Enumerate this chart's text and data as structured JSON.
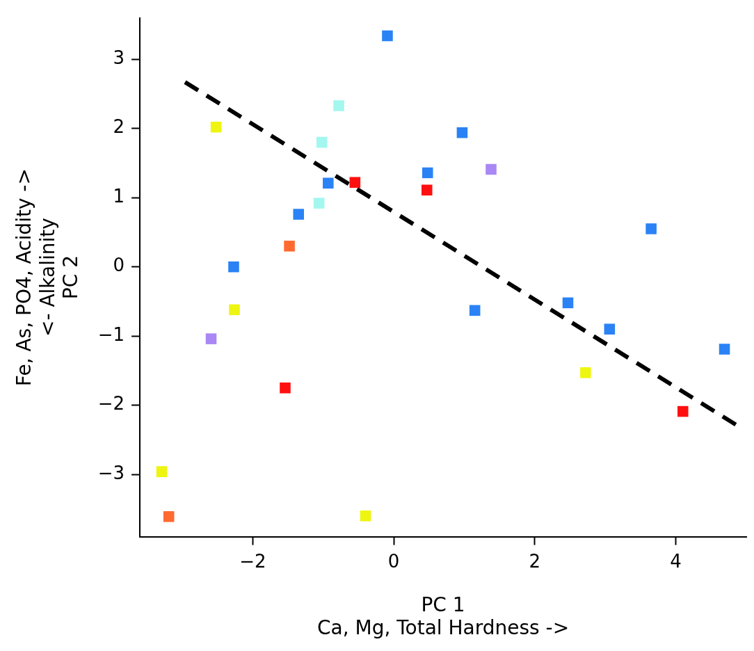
{
  "chart_data": {
    "type": "scatter",
    "xlabel": [
      "PC 1",
      "Ca, Mg, Total Hardness ->"
    ],
    "ylabel": [
      "Fe, As, PO4, Acidity ->",
      "<- Alkalinity",
      "PC 2"
    ],
    "xlim": [
      -3.6,
      5.0
    ],
    "ylim": [
      -3.9,
      3.6
    ],
    "xticks": [
      -2,
      0,
      2,
      4
    ],
    "yticks": [
      -3,
      -2,
      -1,
      0,
      1,
      2,
      3
    ],
    "grid": false,
    "legend": false,
    "marker": "square",
    "series": [
      {
        "color": "#2a82f5",
        "x": [
          -0.09,
          0.97,
          0.48,
          -0.93,
          -1.35,
          -2.27,
          1.15,
          2.47,
          3.06,
          3.65,
          4.69
        ],
        "values": [
          3.34,
          1.94,
          1.36,
          1.21,
          0.76,
          0.0,
          -0.63,
          -0.52,
          -0.9,
          0.55,
          -1.19
        ]
      },
      {
        "color": "#a3f7ee",
        "x": [
          -0.78,
          -1.02,
          -1.06
        ],
        "values": [
          2.33,
          1.8,
          0.92
        ]
      },
      {
        "color": "#ff1010",
        "x": [
          -0.55,
          0.47,
          -1.54,
          4.1
        ],
        "values": [
          1.22,
          1.11,
          -1.75,
          -2.09
        ]
      },
      {
        "color": "#ff6a30",
        "x": [
          -1.48,
          -3.19
        ],
        "values": [
          0.3,
          -3.61
        ]
      },
      {
        "color": "#eef510",
        "x": [
          -2.52,
          -2.26,
          -3.29,
          -0.4,
          2.72
        ],
        "values": [
          2.02,
          -0.62,
          -2.96,
          -3.6,
          -1.53
        ]
      },
      {
        "color": "#a987f5",
        "x": [
          -2.59,
          1.38
        ],
        "values": [
          -1.04,
          1.41
        ]
      },
      {
        "type": "line",
        "color": "#000000",
        "line_style": "dashed",
        "marker": "none",
        "x": [
          -2.96,
          4.85
        ],
        "values": [
          2.67,
          -2.28
        ]
      }
    ]
  }
}
